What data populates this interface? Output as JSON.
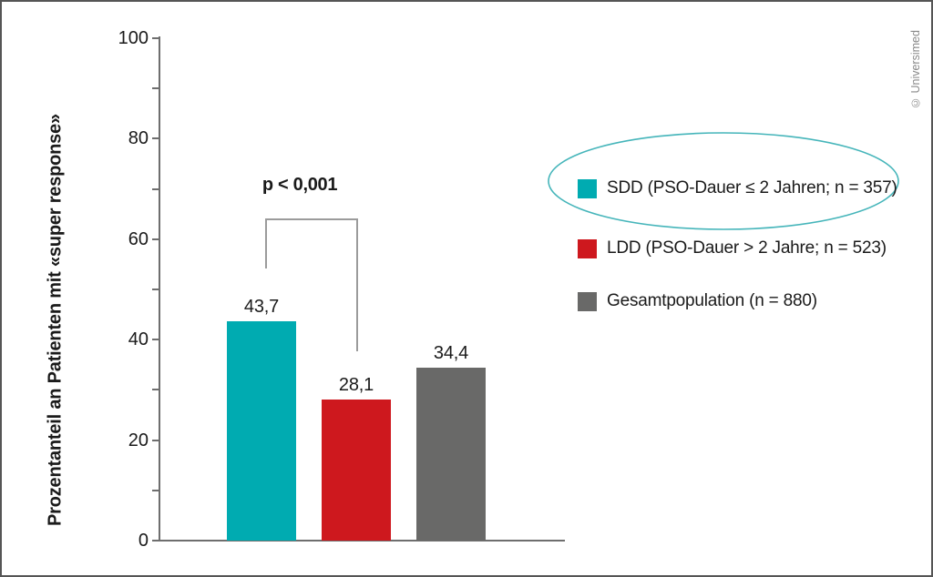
{
  "chart_data": {
    "type": "bar",
    "categories": [
      "SDD",
      "LDD",
      "Gesamtpopulation"
    ],
    "values": [
      43.7,
      28.1,
      34.4
    ],
    "value_labels": [
      "43,7",
      "28,1",
      "34,4"
    ],
    "bar_colors": [
      "#00abb1",
      "#ce181e",
      "#696968"
    ],
    "title": "",
    "xlabel": "",
    "ylabel": "Prozentanteil an Patienten mit «super response»",
    "ylim": [
      0,
      100
    ],
    "yticks_major": [
      0,
      20,
      40,
      60,
      80,
      100
    ],
    "yticks_minor": [
      10,
      30,
      50,
      70,
      90
    ],
    "grid": false,
    "legend_position": "right",
    "legend": [
      {
        "label": "SDD (PSO-Dauer ≤ 2 Jahren; n = 357)",
        "color": "#00abb1",
        "highlighted": true
      },
      {
        "label": "LDD (PSO-Dauer > 2 Jahre; n = 523)",
        "color": "#ce181e",
        "highlighted": false
      },
      {
        "label": "Gesamtpopulation (n = 880)",
        "color": "#696968",
        "highlighted": false
      }
    ],
    "annotation": {
      "text": "p < 0,001",
      "compares": [
        "SDD",
        "LDD"
      ]
    },
    "highlight_ellipse_color": "#45b5ba",
    "axis_color": "#6e6e6e",
    "bracket_color": "#9b9b9b"
  },
  "credit": "© Universimed"
}
